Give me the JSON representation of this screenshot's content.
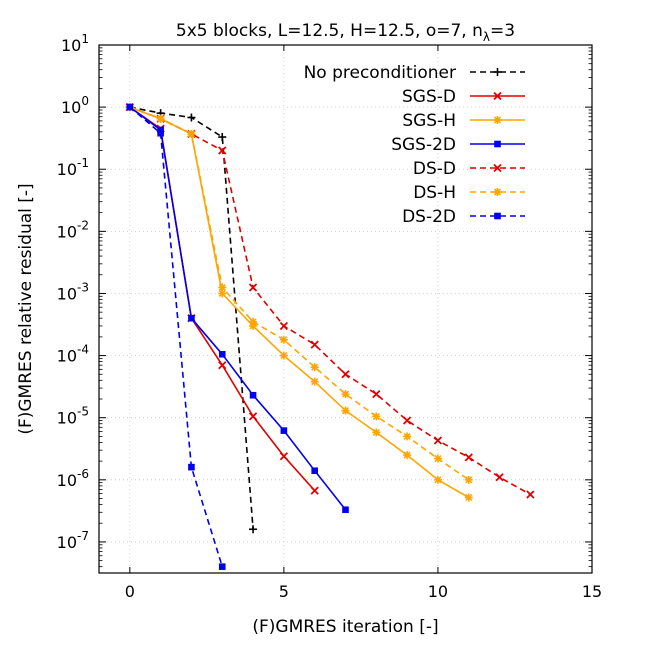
{
  "chart_data": {
    "type": "line",
    "title": "5x5 blocks, L=12.5, H=12.5, o=7, n",
    "title_subscript": "λ",
    "title_suffix": "=3",
    "xlabel": "(F)GMRES iteration [-]",
    "ylabel": "(F)GMRES relative residual [-]",
    "xlim": [
      -1,
      15
    ],
    "ylim_log10": [
      -7.5,
      1
    ],
    "xscale": "linear",
    "yscale": "log",
    "grid": true,
    "legend_position": "top-right",
    "x_ticks": [
      {
        "value": 0,
        "label": "0"
      },
      {
        "value": 5,
        "label": "5"
      },
      {
        "value": 10,
        "label": "10"
      },
      {
        "value": 15,
        "label": "15"
      }
    ],
    "y_ticks": [
      {
        "exp": 1,
        "base": "10",
        "sup": "1"
      },
      {
        "exp": 0,
        "base": "10",
        "sup": "0"
      },
      {
        "exp": -1,
        "base": "10",
        "sup": "-1"
      },
      {
        "exp": -2,
        "base": "10",
        "sup": "-2"
      },
      {
        "exp": -3,
        "base": "10",
        "sup": "-3"
      },
      {
        "exp": -4,
        "base": "10",
        "sup": "-4"
      },
      {
        "exp": -5,
        "base": "10",
        "sup": "-5"
      },
      {
        "exp": -6,
        "base": "10",
        "sup": "-6"
      },
      {
        "exp": -7,
        "base": "10",
        "sup": "-7"
      }
    ],
    "series": [
      {
        "name": "No preconditioner",
        "color": "#000000",
        "dashed": true,
        "marker": "plus",
        "x": [
          0,
          1,
          2,
          3,
          4
        ],
        "y": [
          1.0,
          0.8,
          0.68,
          0.33,
          1.6e-07
        ]
      },
      {
        "name": "SGS-D",
        "color": "#e00000",
        "dashed": false,
        "marker": "x",
        "x": [
          0,
          1,
          2,
          3,
          4,
          5,
          6
        ],
        "y": [
          1.0,
          0.45,
          0.0004,
          7e-05,
          1.05e-05,
          2.4e-06,
          6.7e-07
        ]
      },
      {
        "name": "SGS-H",
        "color": "#ffa500",
        "dashed": false,
        "marker": "star",
        "x": [
          0,
          1,
          2,
          3,
          4,
          5,
          6,
          7,
          8,
          9,
          10,
          11
        ],
        "y": [
          1.0,
          0.65,
          0.37,
          0.001,
          0.0003,
          0.0001,
          3.8e-05,
          1.3e-05,
          5.8e-06,
          2.5e-06,
          1e-06,
          5.2e-07
        ]
      },
      {
        "name": "SGS-2D",
        "color": "#0000ee",
        "dashed": false,
        "marker": "square",
        "x": [
          0,
          1,
          2,
          3,
          4,
          5,
          6,
          7
        ],
        "y": [
          1.0,
          0.43,
          0.0004,
          0.000105,
          2.3e-05,
          6.2e-06,
          1.4e-06,
          3.3e-07
        ]
      },
      {
        "name": "DS-D",
        "color": "#e00000",
        "dashed": true,
        "marker": "x",
        "x": [
          0,
          1,
          2,
          3,
          4,
          5,
          6,
          7,
          8,
          9,
          10,
          11,
          12,
          13
        ],
        "y": [
          1.0,
          0.65,
          0.37,
          0.2,
          0.00125,
          0.0003,
          0.00015,
          5e-05,
          2.4e-05,
          9e-06,
          4.3e-06,
          2.3e-06,
          1.1e-06,
          5.8e-07
        ]
      },
      {
        "name": "DS-H",
        "color": "#ffa500",
        "dashed": true,
        "marker": "star",
        "x": [
          0,
          1,
          2,
          3,
          4,
          5,
          6,
          7,
          8,
          9,
          10,
          11
        ],
        "y": [
          1.0,
          0.65,
          0.37,
          0.00125,
          0.00035,
          0.00018,
          6.5e-05,
          2.4e-05,
          1.05e-05,
          5e-06,
          2.2e-06,
          1e-06
        ]
      },
      {
        "name": "DS-2D",
        "color": "#0000ee",
        "dashed": true,
        "marker": "square",
        "x": [
          0,
          1,
          2,
          3
        ],
        "y": [
          1.0,
          0.38,
          1.6e-06,
          4e-08
        ]
      }
    ]
  }
}
